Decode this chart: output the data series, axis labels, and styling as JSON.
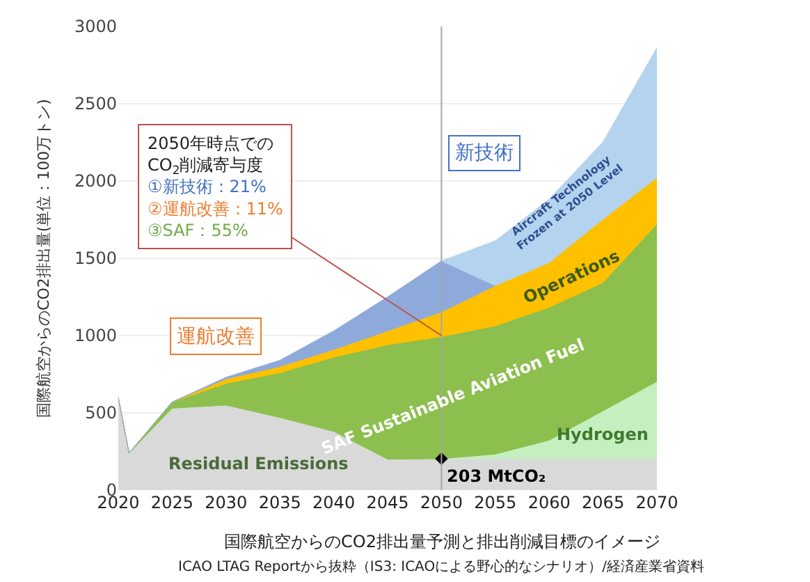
{
  "chart_data": {
    "type": "area",
    "stacked": true,
    "ylabel": "国際航空からのCO2排出量(単位：100万トン)",
    "x": [
      2020,
      2021,
      2025,
      2030,
      2035,
      2040,
      2045,
      2050,
      2055,
      2060,
      2065,
      2070
    ],
    "xlim": [
      2020,
      2070
    ],
    "xticks": [
      2020,
      2025,
      2030,
      2035,
      2040,
      2045,
      2050,
      2055,
      2060,
      2065,
      2070
    ],
    "ylim": [
      0,
      3000
    ],
    "yticks": [
      0,
      500,
      1000,
      1500,
      2000,
      2500,
      3000
    ],
    "grid": "y",
    "legend": false,
    "series": [
      {
        "name": "Residual Emissions",
        "color": "#d9d9d9",
        "values": [
          600,
          240,
          530,
          550,
          470,
          380,
          200,
          203,
          203,
          203,
          203,
          203
        ]
      },
      {
        "name": "Hydrogen",
        "color": "#c6efc0",
        "values": [
          0,
          0,
          0,
          0,
          0,
          0,
          0,
          0,
          30,
          120,
          310,
          500
        ]
      },
      {
        "name": "SAF Sustainable Aviation Fuel",
        "color": "#8cbf4e",
        "values": [
          0,
          0,
          40,
          140,
          290,
          480,
          740,
          790,
          830,
          860,
          830,
          1020
        ]
      },
      {
        "name": "Operations",
        "color": "#ffc000",
        "values": [
          0,
          0,
          0,
          30,
          40,
          50,
          90,
          160,
          260,
          290,
          410,
          300
        ]
      },
      {
        "color": "#8eaadb",
        "values": [
          0,
          0,
          0,
          10,
          40,
          120,
          220,
          330,
          0,
          null,
          null,
          null
        ]
      },
      {
        "name": "Aircraft Technology\nFrozen at 2050 Level",
        "color": "#b4d3ee",
        "values": [
          null,
          null,
          null,
          null,
          null,
          null,
          null,
          0,
          290,
          410,
          500,
          840
        ]
      }
    ],
    "ref_lines": [
      {
        "axis": "x",
        "value": 2050,
        "color": "#a6a6a6"
      }
    ],
    "annotations": [
      {
        "text": "203 MtCO₂",
        "x": 2050,
        "y": 203
      },
      {
        "text": "2050年時点での\nCO$_{2}$削減寄与度\n①新技術：21%\n②運航改善：11%\n③SAF：55%",
        "x": 2050,
        "y": 1000
      },
      "新技術",
      "運航改善",
      "国際航空からのCO2排出量予測と排出削減目標のイメージ",
      "ICAO LTAG Reportから抜粋（IS3: ICAOによる野心的なシナリオ）/経済産業省資料"
    ]
  }
}
